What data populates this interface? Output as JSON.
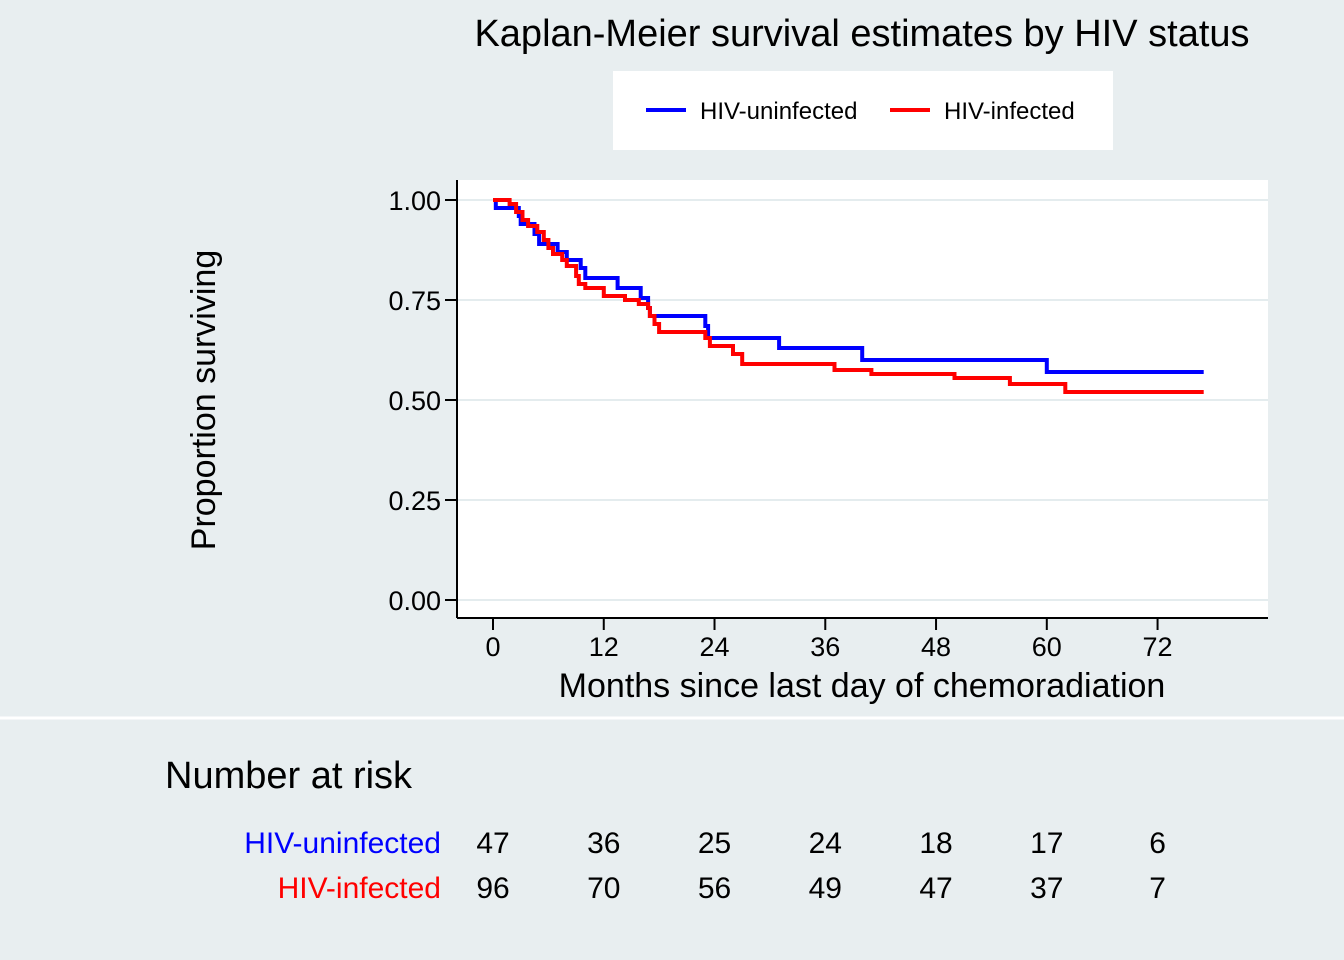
{
  "chart_data": {
    "type": "line",
    "title": "Kaplan-Meier survival estimates by HIV status",
    "xlabel": "Months since last day of chemoradiation",
    "ylabel": "Proportion surviving",
    "xlim": [
      0,
      78
    ],
    "ylim": [
      0,
      1
    ],
    "x_ticks": [
      0,
      12,
      24,
      36,
      48,
      60,
      72
    ],
    "x_tick_labels": [
      "0",
      "12",
      "24",
      "36",
      "48",
      "60",
      "72"
    ],
    "y_ticks": [
      0,
      0.25,
      0.5,
      0.75,
      1
    ],
    "y_tick_labels": [
      "0.00",
      "0.25",
      "0.50",
      "0.75",
      "1.00"
    ],
    "grid": true,
    "legend_position": "top",
    "series": [
      {
        "name": "HIV-uninfected",
        "color": "#0000ff",
        "step": true,
        "points": [
          [
            0,
            1.0
          ],
          [
            0.3,
            0.98
          ],
          [
            2.8,
            0.96
          ],
          [
            3.0,
            0.94
          ],
          [
            4.5,
            0.915
          ],
          [
            5.0,
            0.89
          ],
          [
            7.0,
            0.87
          ],
          [
            7.3,
            0.87
          ],
          [
            8.0,
            0.85
          ],
          [
            9.5,
            0.83
          ],
          [
            10.0,
            0.805
          ],
          [
            13.5,
            0.78
          ],
          [
            16.0,
            0.755
          ],
          [
            16.8,
            0.73
          ],
          [
            17.0,
            0.71
          ],
          [
            23.0,
            0.685
          ],
          [
            23.3,
            0.655
          ],
          [
            31.0,
            0.63
          ],
          [
            40.0,
            0.6
          ],
          [
            60.0,
            0.57
          ],
          [
            77.0,
            0.57
          ]
        ]
      },
      {
        "name": "HIV-infected",
        "color": "#ff0000",
        "step": true,
        "points": [
          [
            0,
            1.0
          ],
          [
            1.8,
            0.99
          ],
          [
            2.5,
            0.97
          ],
          [
            3.2,
            0.95
          ],
          [
            3.8,
            0.935
          ],
          [
            4.8,
            0.92
          ],
          [
            5.5,
            0.9
          ],
          [
            6.0,
            0.88
          ],
          [
            6.5,
            0.865
          ],
          [
            7.5,
            0.85
          ],
          [
            8.0,
            0.835
          ],
          [
            9.0,
            0.81
          ],
          [
            9.3,
            0.79
          ],
          [
            10.0,
            0.78
          ],
          [
            12.0,
            0.76
          ],
          [
            14.3,
            0.75
          ],
          [
            15.8,
            0.74
          ],
          [
            16.8,
            0.73
          ],
          [
            17.0,
            0.71
          ],
          [
            17.5,
            0.69
          ],
          [
            18.0,
            0.67
          ],
          [
            23.0,
            0.655
          ],
          [
            23.5,
            0.635
          ],
          [
            26.0,
            0.615
          ],
          [
            27.0,
            0.59
          ],
          [
            37.0,
            0.575
          ],
          [
            41.0,
            0.565
          ],
          [
            50.0,
            0.555
          ],
          [
            56.0,
            0.54
          ],
          [
            62.0,
            0.52
          ],
          [
            77.0,
            0.52
          ]
        ]
      }
    ],
    "risk_table": {
      "title": "Number at risk",
      "times": [
        0,
        12,
        24,
        36,
        48,
        60,
        72
      ],
      "rows": [
        {
          "label": "HIV-uninfected",
          "color": "#0000ff",
          "values": [
            "47",
            "36",
            "25",
            "24",
            "18",
            "17",
            "6"
          ]
        },
        {
          "label": "HIV-infected",
          "color": "#ff0000",
          "values": [
            "96",
            "70",
            "56",
            "49",
            "47",
            "37",
            "7"
          ]
        }
      ]
    }
  }
}
